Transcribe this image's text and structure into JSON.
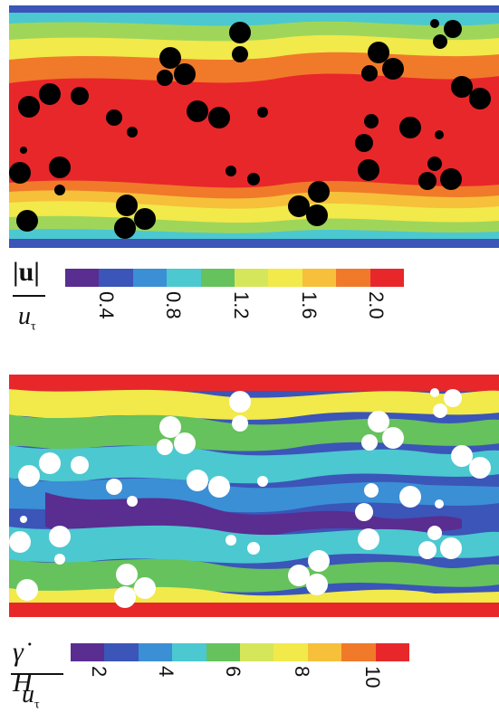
{
  "top_panel": {
    "variable": "velocity-magnitude",
    "colorbar": {
      "colors": [
        "#5a2d91",
        "#3b55b8",
        "#3b8fd4",
        "#4cc8d0",
        "#66c25c",
        "#d6e65a",
        "#f2e94a",
        "#f6c03a",
        "#f07a2a",
        "#e8272a"
      ],
      "ticks": [
        "0.4",
        "0.8",
        "1.2",
        "1.6",
        "2.0"
      ]
    },
    "label_num": "|u|",
    "label_den": "u",
    "label_den_sub": "τ"
  },
  "bottom_panel": {
    "variable": "shear-rate",
    "colorbar": {
      "colors": [
        "#5a2d91",
        "#3b55b8",
        "#3b8fd4",
        "#4cc8d0",
        "#66c25c",
        "#d6e65a",
        "#f2e94a",
        "#f6c03a",
        "#f07a2a",
        "#e8272a"
      ],
      "ticks": [
        "2",
        "4",
        "6",
        "8",
        "10"
      ]
    },
    "label_num": "γ̇ H",
    "label_den": "u",
    "label_den_sub": "τ"
  },
  "colors": {
    "particles_top": "#000000",
    "particles_bottom": "#ffffff"
  }
}
